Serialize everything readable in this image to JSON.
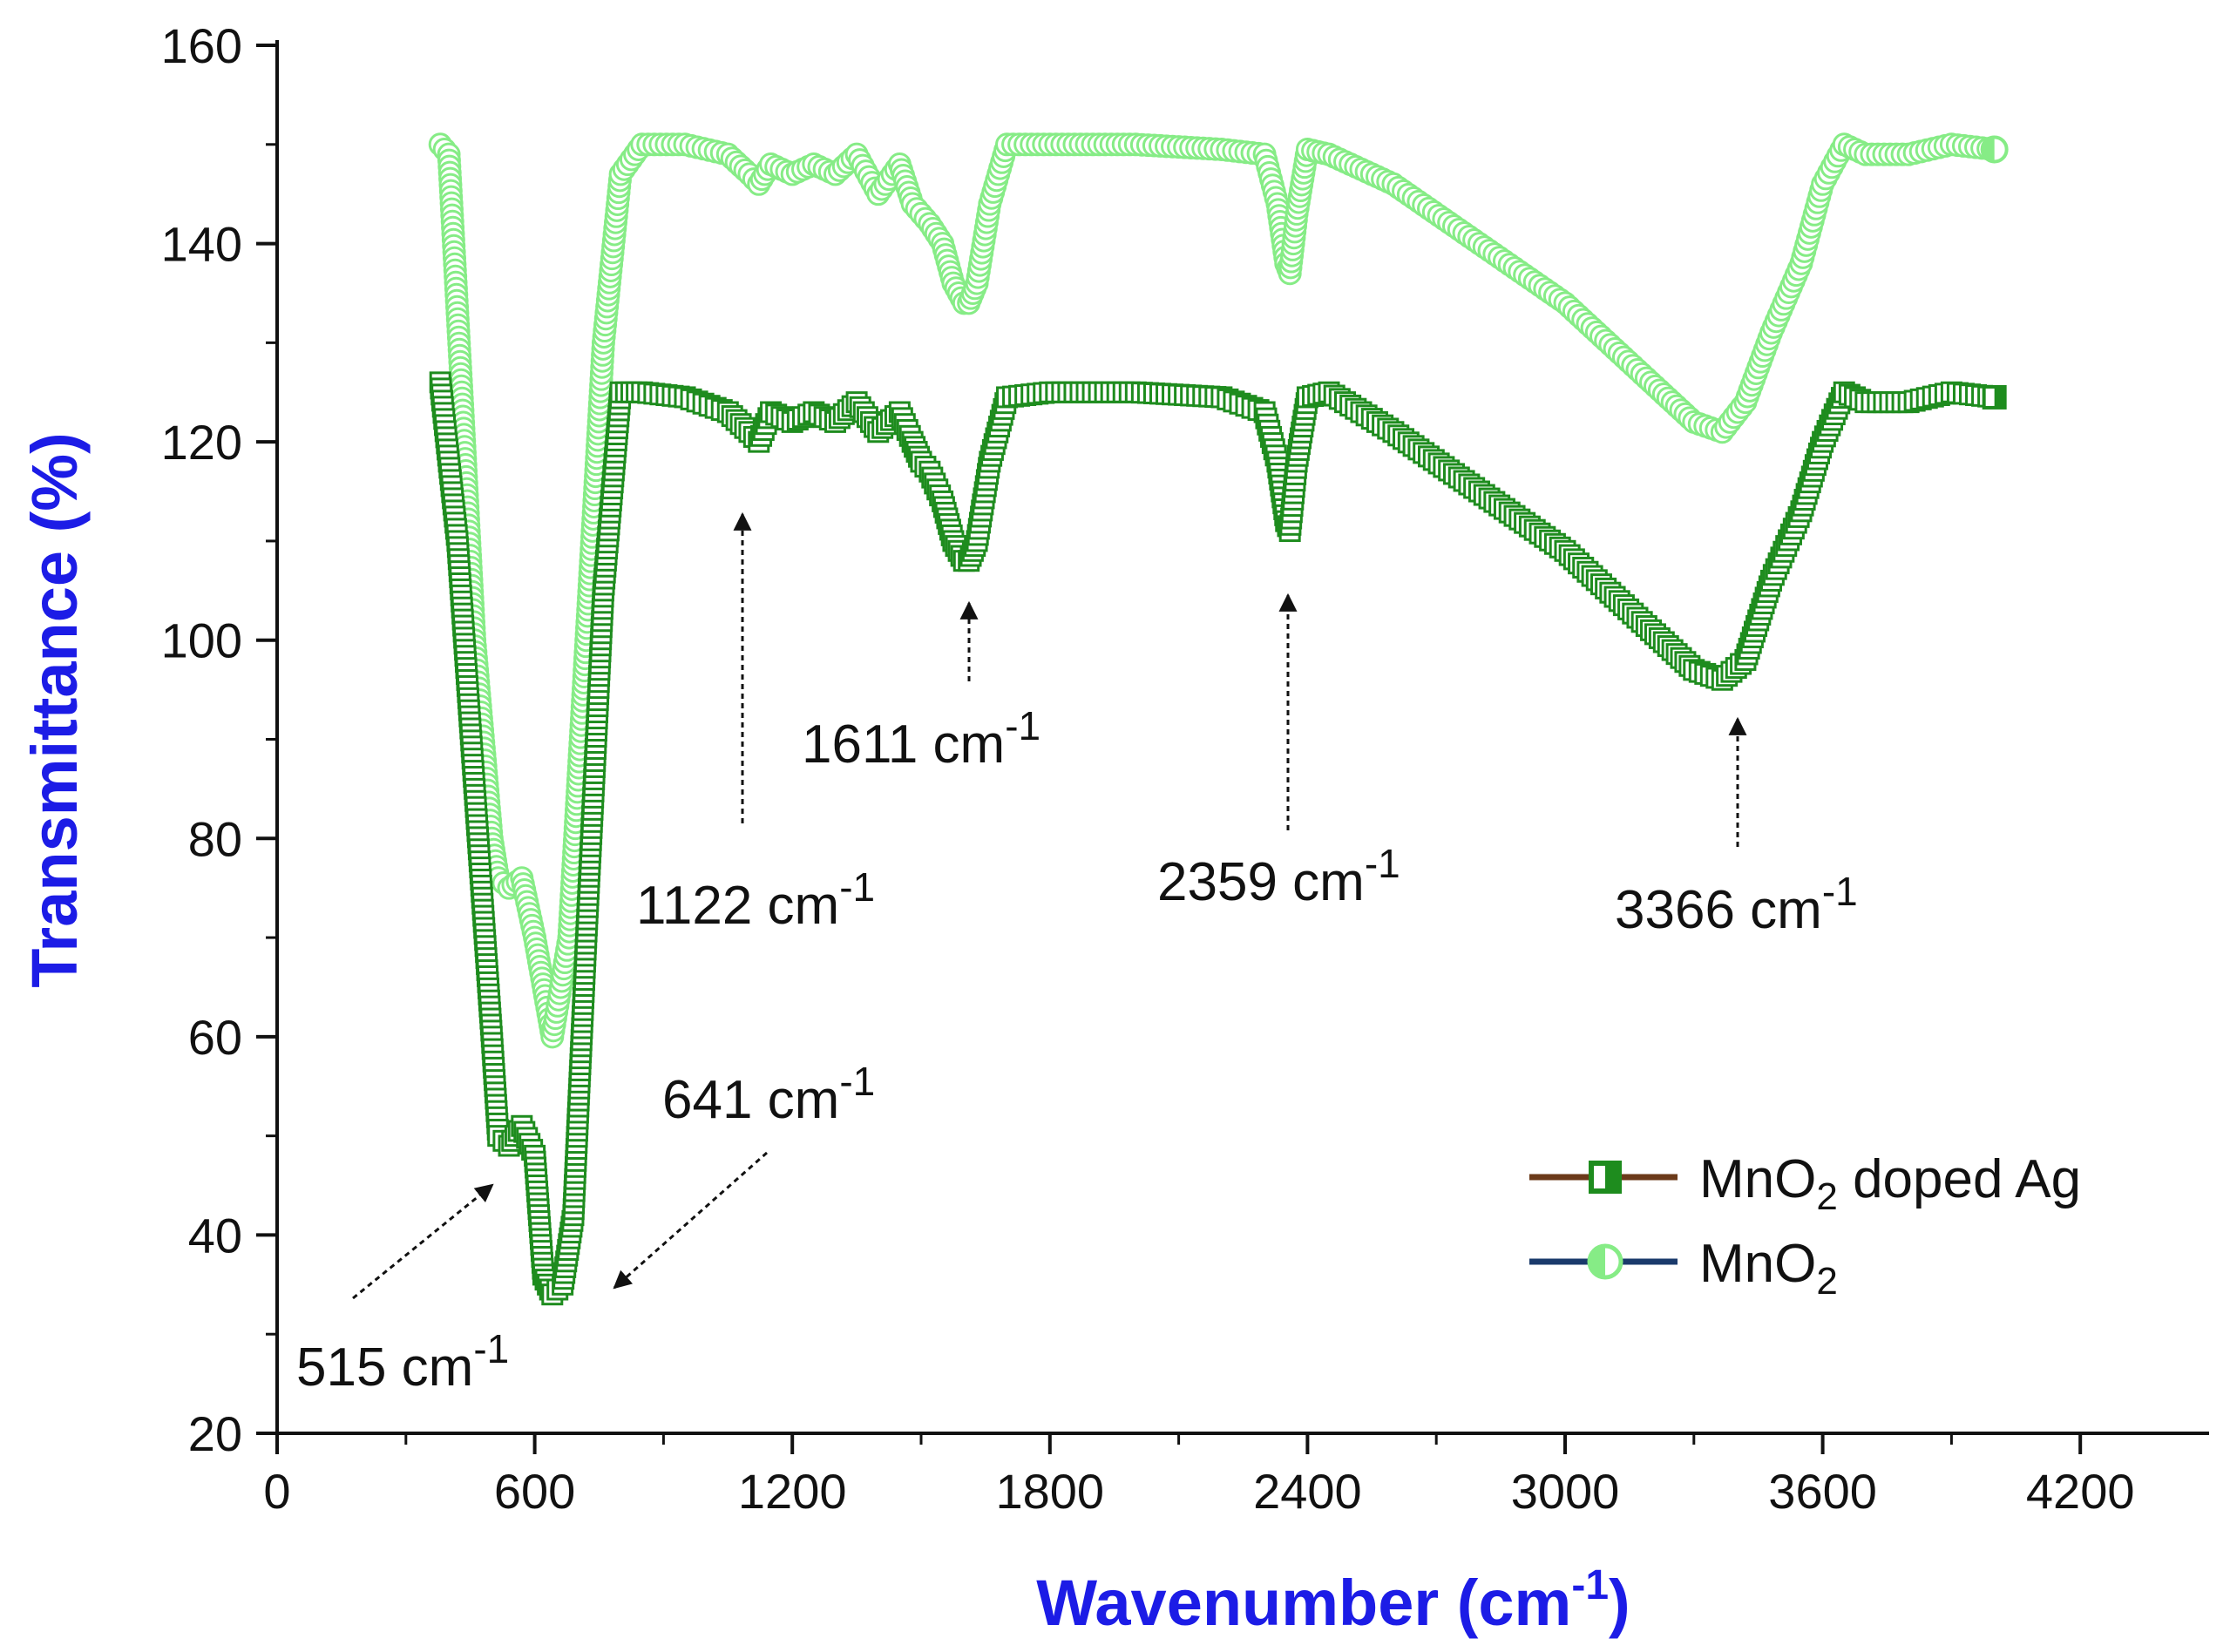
{
  "chart_data": {
    "type": "line",
    "title": "",
    "xlabel": "Wavenumber (cm",
    "xlabel_sup": "-1",
    "xlabel_close": ")",
    "ylabel": "Transmittance (%)",
    "xlim": [
      0,
      4500
    ],
    "ylim": [
      20,
      160
    ],
    "xticks": [
      0,
      600,
      1200,
      1800,
      2400,
      3000,
      3600,
      4200
    ],
    "yticks": [
      20,
      40,
      60,
      80,
      100,
      120,
      140,
      160
    ],
    "legend_position": "bottom-right",
    "series": [
      {
        "name": "MnO2 doped Ag",
        "name_main": "MnO",
        "name_sub": "2",
        "name_rest": " doped Ag",
        "color": "#1e8c1e",
        "legend_line_color": "#6b3a1a",
        "marker": "half-filled-square",
        "x": [
          380,
          420,
          460,
          500,
          515,
          540,
          570,
          600,
          620,
          641,
          665,
          690,
          720,
          760,
          800,
          850,
          950,
          1050,
          1100,
          1122,
          1150,
          1200,
          1250,
          1300,
          1350,
          1400,
          1450,
          1480,
          1500,
          1520,
          1550,
          1575,
          1600,
          1611,
          1630,
          1660,
          1700,
          1800,
          2000,
          2200,
          2300,
          2330,
          2350,
          2359,
          2375,
          2400,
          2450,
          2600,
          2800,
          3000,
          3200,
          3300,
          3366,
          3420,
          3480,
          3550,
          3600,
          3650,
          3700,
          3800,
          3900,
          4000
        ],
        "y": [
          126,
          110,
          85,
          60,
          50,
          49,
          51,
          48,
          36,
          34,
          35,
          42,
          70,
          105,
          125,
          125,
          124.5,
          123,
          121,
          120,
          123,
          122,
          123,
          122,
          124,
          121,
          123,
          120,
          118,
          117,
          114,
          110,
          108,
          108,
          110,
          118,
          124.5,
          125,
          125,
          124.5,
          123,
          118,
          112,
          111,
          118,
          124.5,
          125,
          121,
          115,
          109,
          101,
          97,
          96,
          98,
          106,
          113,
          120,
          125,
          124,
          124,
          125,
          124.5
        ]
      },
      {
        "name": "MnO2",
        "name_main": "MnO",
        "name_sub": "2",
        "name_rest": "",
        "color": "#86ec86",
        "legend_line_color": "#1a3a6b",
        "marker": "half-filled-circle",
        "x": [
          380,
          400,
          430,
          460,
          500,
          515,
          540,
          570,
          600,
          641,
          680,
          720,
          760,
          800,
          850,
          950,
          1050,
          1100,
          1122,
          1150,
          1200,
          1250,
          1300,
          1350,
          1400,
          1450,
          1480,
          1500,
          1520,
          1550,
          1575,
          1600,
          1611,
          1630,
          1660,
          1700,
          1800,
          2000,
          2200,
          2300,
          2330,
          2350,
          2359,
          2375,
          2400,
          2450,
          2600,
          2800,
          3000,
          3200,
          3300,
          3366,
          3420,
          3480,
          3550,
          3600,
          3650,
          3700,
          3800,
          3900,
          4000
        ],
        "y": [
          150,
          149,
          125,
          100,
          80,
          76,
          75,
          76,
          70,
          60,
          70,
          100,
          130,
          147,
          150,
          150,
          149,
          147,
          146,
          148,
          147,
          148,
          147,
          149,
          145,
          148,
          144,
          143,
          142,
          140,
          136,
          134,
          134,
          136,
          144,
          150,
          150,
          150,
          149.5,
          149,
          144,
          138,
          137,
          143,
          149.5,
          149,
          146,
          140,
          134,
          126,
          122,
          121,
          124,
          131,
          138,
          146,
          150,
          149,
          149,
          150,
          149.5
        ]
      }
    ],
    "annotations": [
      {
        "text": "515 cm",
        "sup": "-1",
        "x": 515,
        "y": 50
      },
      {
        "text": "641 cm",
        "sup": "-1",
        "x": 641,
        "y": 34
      },
      {
        "text": "1122 cm",
        "sup": "-1",
        "x": 1122,
        "y": 120
      },
      {
        "text": "1611 cm",
        "sup": "-1",
        "x": 1611,
        "y": 108
      },
      {
        "text": "2359 cm",
        "sup": "-1",
        "x": 2359,
        "y": 111
      },
      {
        "text": "3366 cm",
        "sup": "-1",
        "x": 3366,
        "y": 96
      }
    ]
  }
}
